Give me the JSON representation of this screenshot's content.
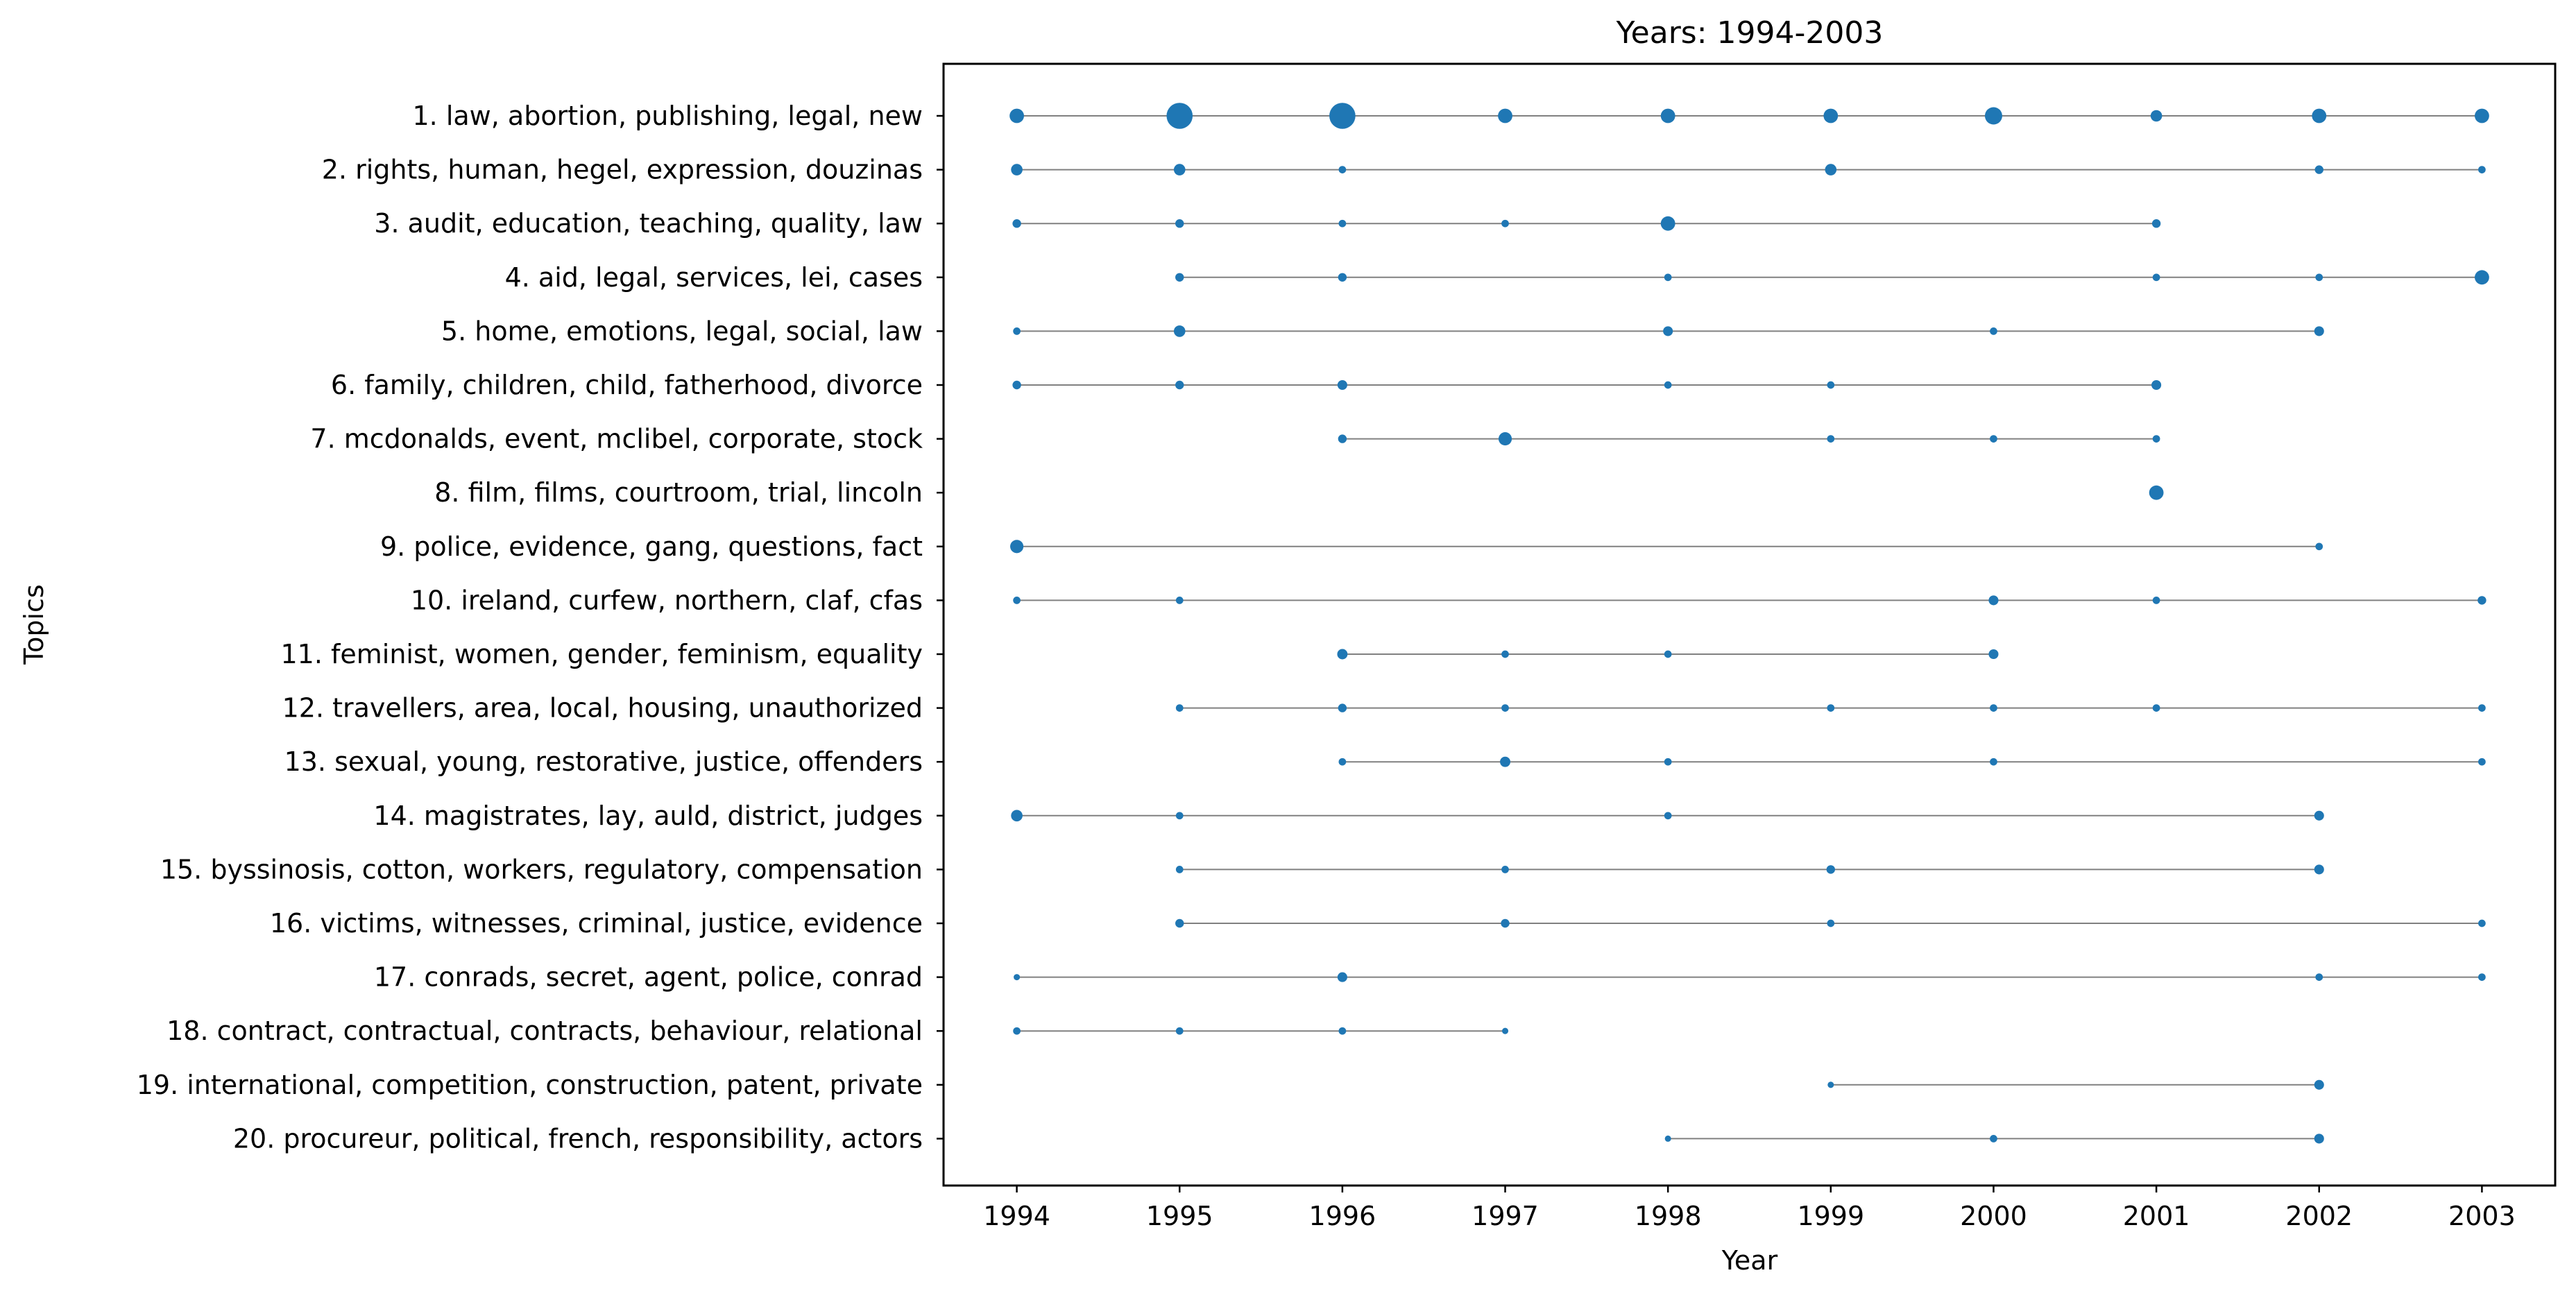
{
  "chart_data": {
    "type": "scatter",
    "title": "Years: 1994-2003",
    "xlabel": "Year",
    "ylabel": "Topics",
    "xlim": [
      1993.55,
      2003.45
    ],
    "x_ticks": [
      1994,
      1995,
      1996,
      1997,
      1998,
      1999,
      2000,
      2001,
      2002,
      2003
    ],
    "grid": false,
    "marker_color": "#1f77b4",
    "line_color": "#808080",
    "size_encoding": "relative topic weight per year (1 = smallest dot, 4 = largest)",
    "topics": [
      {
        "label": "1. law, abortion, publishing, legal, new",
        "points": [
          [
            1994,
            2
          ],
          [
            1995,
            4
          ],
          [
            1996,
            4
          ],
          [
            1997,
            2
          ],
          [
            1998,
            2
          ],
          [
            1999,
            2
          ],
          [
            2000,
            2.5
          ],
          [
            2001,
            1.5
          ],
          [
            2002,
            2
          ],
          [
            2003,
            2
          ]
        ]
      },
      {
        "label": "2. rights, human, hegel, expression, douzinas",
        "points": [
          [
            1994,
            1.5
          ],
          [
            1995,
            1.5
          ],
          [
            1996,
            0.8
          ],
          [
            1999,
            1.5
          ],
          [
            2002,
            1
          ],
          [
            2003,
            0.8
          ]
        ]
      },
      {
        "label": "3. audit, education, teaching, quality, law",
        "points": [
          [
            1994,
            1
          ],
          [
            1995,
            1
          ],
          [
            1996,
            0.8
          ],
          [
            1997,
            0.8
          ],
          [
            1998,
            2
          ],
          [
            2001,
            1
          ]
        ]
      },
      {
        "label": "4. aid, legal, services, lei, cases",
        "points": [
          [
            1995,
            1
          ],
          [
            1996,
            1
          ],
          [
            1998,
            0.8
          ],
          [
            2001,
            0.8
          ],
          [
            2002,
            0.8
          ],
          [
            2003,
            2
          ]
        ]
      },
      {
        "label": "5. home, emotions, legal, social, law",
        "points": [
          [
            1994,
            0.8
          ],
          [
            1995,
            1.5
          ],
          [
            1998,
            1.2
          ],
          [
            2000,
            0.8
          ],
          [
            2002,
            1.2
          ]
        ]
      },
      {
        "label": "6. family, children, child, fatherhood, divorce",
        "points": [
          [
            1994,
            1
          ],
          [
            1995,
            1
          ],
          [
            1996,
            1.2
          ],
          [
            1998,
            0.8
          ],
          [
            1999,
            0.8
          ],
          [
            2001,
            1.2
          ]
        ]
      },
      {
        "label": "7. mcdonalds, event, mclibel, corporate, stock",
        "points": [
          [
            1996,
            1
          ],
          [
            1997,
            1.8
          ],
          [
            1999,
            0.8
          ],
          [
            2000,
            0.8
          ],
          [
            2001,
            0.8
          ]
        ]
      },
      {
        "label": "8. film, films, courtroom, trial, lincoln",
        "points": [
          [
            2001,
            2
          ]
        ]
      },
      {
        "label": "9. police, evidence, gang, questions, fact",
        "points": [
          [
            1994,
            1.8
          ],
          [
            2002,
            0.8
          ]
        ]
      },
      {
        "label": "10. ireland, curfew, northern, claf, cfas",
        "points": [
          [
            1994,
            0.8
          ],
          [
            1995,
            0.8
          ],
          [
            2000,
            1.2
          ],
          [
            2001,
            0.8
          ],
          [
            2003,
            1
          ]
        ]
      },
      {
        "label": "11. feminist, women, gender, feminism, equality",
        "points": [
          [
            1996,
            1.3
          ],
          [
            1997,
            0.8
          ],
          [
            1998,
            0.8
          ],
          [
            2000,
            1.2
          ]
        ]
      },
      {
        "label": "12. travellers, area, local, housing, unauthorized",
        "points": [
          [
            1995,
            0.8
          ],
          [
            1996,
            1
          ],
          [
            1997,
            0.8
          ],
          [
            1999,
            0.8
          ],
          [
            2000,
            0.8
          ],
          [
            2001,
            0.8
          ],
          [
            2003,
            0.8
          ]
        ]
      },
      {
        "label": "13. sexual, young, restorative, justice, offenders",
        "points": [
          [
            1996,
            0.8
          ],
          [
            1997,
            1.3
          ],
          [
            1998,
            0.8
          ],
          [
            2000,
            0.8
          ],
          [
            2003,
            0.8
          ]
        ]
      },
      {
        "label": "14. magistrates, lay, auld, district, judges",
        "points": [
          [
            1994,
            1.5
          ],
          [
            1995,
            0.8
          ],
          [
            1998,
            0.8
          ],
          [
            2002,
            1.2
          ]
        ]
      },
      {
        "label": "15. byssinosis, cotton, workers, regulatory, compensation",
        "points": [
          [
            1995,
            0.8
          ],
          [
            1997,
            0.8
          ],
          [
            1999,
            1
          ],
          [
            2002,
            1.2
          ]
        ]
      },
      {
        "label": "16. victims, witnesses, criminal, justice, evidence",
        "points": [
          [
            1995,
            1
          ],
          [
            1997,
            1
          ],
          [
            1999,
            0.8
          ],
          [
            2003,
            0.8
          ]
        ]
      },
      {
        "label": "17. conrads, secret, agent, police, conrad",
        "points": [
          [
            1994,
            0.6
          ],
          [
            1996,
            1.2
          ],
          [
            2002,
            0.8
          ],
          [
            2003,
            0.8
          ]
        ]
      },
      {
        "label": "18. contract, contractual, contracts, behaviour, relational",
        "points": [
          [
            1994,
            0.8
          ],
          [
            1995,
            0.8
          ],
          [
            1996,
            0.8
          ],
          [
            1997,
            0.6
          ]
        ]
      },
      {
        "label": "19. international, competition, construction, patent, private",
        "points": [
          [
            1999,
            0.6
          ],
          [
            2002,
            1.2
          ]
        ]
      },
      {
        "label": "20. procureur, political, french, responsibility, actors",
        "points": [
          [
            1998,
            0.6
          ],
          [
            2000,
            0.8
          ],
          [
            2002,
            1.2
          ]
        ]
      }
    ]
  }
}
